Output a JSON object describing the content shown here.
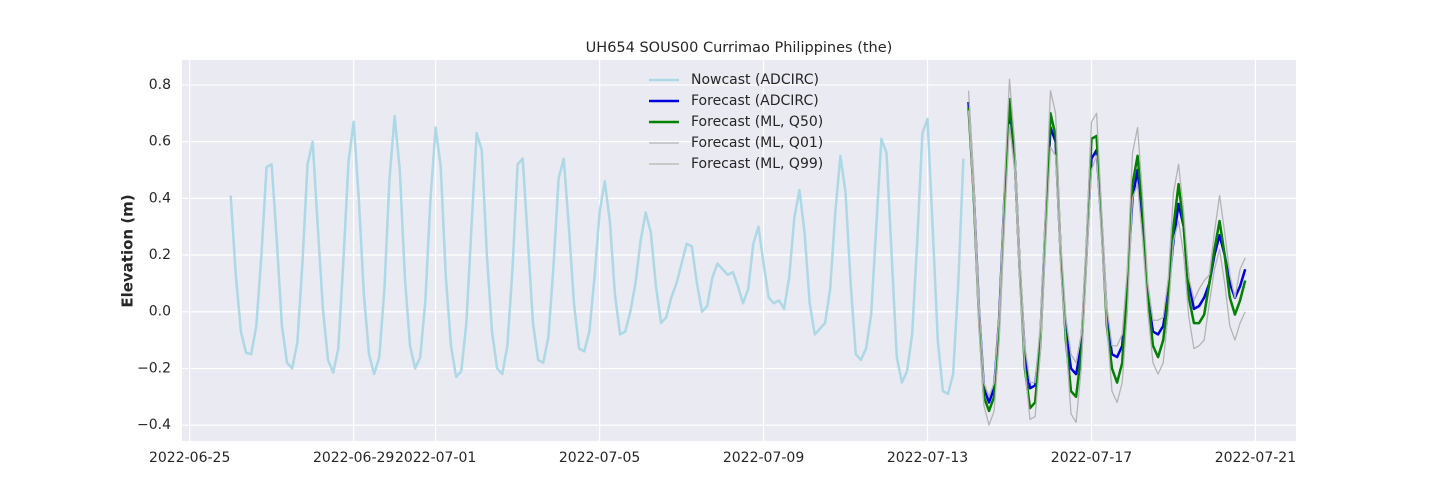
{
  "chart_data": {
    "type": "line",
    "title": "UH654 SOUS00 Currimao Philippines (the)",
    "y_label": "Elevation (m)",
    "xlim": [
      "2022-06-24T19:30",
      "2022-07-21T23:45"
    ],
    "xticks": [
      "2022-06-25",
      "2022-06-29",
      "2022-07-01",
      "2022-07-05",
      "2022-07-09",
      "2022-07-13",
      "2022-07-17",
      "2022-07-21"
    ],
    "ylim": [
      -0.456,
      0.888
    ],
    "yticks": [
      {
        "value": -0.4,
        "label": "−0.4"
      },
      {
        "value": -0.2,
        "label": "−0.2"
      },
      {
        "value": 0,
        "label": "0.0"
      },
      0.2,
      0.4,
      0.6,
      0.8
    ],
    "grid": true,
    "legend": "upper center",
    "series": [
      {
        "name": "Nowcast (ADCIRC)",
        "color": "#add8e6",
        "width": 2.5,
        "x": [
          "2022-06-26T00:00",
          "2022-06-26T03:00",
          "2022-06-26T06:00",
          "2022-06-26T09:00",
          "2022-06-26T12:00",
          "2022-06-26T15:00",
          "2022-06-26T18:00",
          "2022-06-26T21:00",
          "2022-06-27T00:00",
          "2022-06-27T03:00",
          "2022-06-27T06:00",
          "2022-06-27T09:00",
          "2022-06-27T12:00",
          "2022-06-27T15:00",
          "2022-06-27T18:00",
          "2022-06-27T21:00",
          "2022-06-28T00:00",
          "2022-06-28T03:00",
          "2022-06-28T06:00",
          "2022-06-28T09:00",
          "2022-06-28T12:00",
          "2022-06-28T15:00",
          "2022-06-28T18:00",
          "2022-06-28T21:00",
          "2022-06-29T00:00",
          "2022-06-29T03:00",
          "2022-06-29T06:00",
          "2022-06-29T09:00",
          "2022-06-29T12:00",
          "2022-06-29T15:00",
          "2022-06-29T18:00",
          "2022-06-29T21:00",
          "2022-06-30T00:00",
          "2022-06-30T03:00",
          "2022-06-30T06:00",
          "2022-06-30T09:00",
          "2022-06-30T12:00",
          "2022-06-30T15:00",
          "2022-06-30T18:00",
          "2022-06-30T21:00",
          "2022-07-01T00:00",
          "2022-07-01T03:00",
          "2022-07-01T06:00",
          "2022-07-01T09:00",
          "2022-07-01T12:00",
          "2022-07-01T15:00",
          "2022-07-01T18:00",
          "2022-07-01T21:00",
          "2022-07-02T00:00",
          "2022-07-02T03:00",
          "2022-07-02T06:00",
          "2022-07-02T09:00",
          "2022-07-02T12:00",
          "2022-07-02T15:00",
          "2022-07-02T18:00",
          "2022-07-02T21:00",
          "2022-07-03T00:00",
          "2022-07-03T03:00",
          "2022-07-03T06:00",
          "2022-07-03T09:00",
          "2022-07-03T12:00",
          "2022-07-03T15:00",
          "2022-07-03T18:00",
          "2022-07-03T21:00",
          "2022-07-04T00:00",
          "2022-07-04T03:00",
          "2022-07-04T06:00",
          "2022-07-04T09:00",
          "2022-07-04T12:00",
          "2022-07-04T15:00",
          "2022-07-04T18:00",
          "2022-07-04T21:00",
          "2022-07-05T00:00",
          "2022-07-05T03:00",
          "2022-07-05T06:00",
          "2022-07-05T09:00",
          "2022-07-05T12:00",
          "2022-07-05T15:00",
          "2022-07-05T18:00",
          "2022-07-05T21:00",
          "2022-07-06T00:00",
          "2022-07-06T03:00",
          "2022-07-06T06:00",
          "2022-07-06T09:00",
          "2022-07-06T12:00",
          "2022-07-06T15:00",
          "2022-07-06T18:00",
          "2022-07-06T21:00",
          "2022-07-07T00:00",
          "2022-07-07T03:00",
          "2022-07-07T06:00",
          "2022-07-07T09:00",
          "2022-07-07T12:00",
          "2022-07-07T15:00",
          "2022-07-07T18:00",
          "2022-07-07T21:00",
          "2022-07-08T00:00",
          "2022-07-08T03:00",
          "2022-07-08T06:00",
          "2022-07-08T09:00",
          "2022-07-08T12:00",
          "2022-07-08T15:00",
          "2022-07-08T18:00",
          "2022-07-08T21:00",
          "2022-07-09T00:00",
          "2022-07-09T03:00",
          "2022-07-09T06:00",
          "2022-07-09T09:00",
          "2022-07-09T12:00",
          "2022-07-09T15:00",
          "2022-07-09T18:00",
          "2022-07-09T21:00",
          "2022-07-10T00:00",
          "2022-07-10T03:00",
          "2022-07-10T06:00",
          "2022-07-10T09:00",
          "2022-07-10T12:00",
          "2022-07-10T15:00",
          "2022-07-10T18:00",
          "2022-07-10T21:00",
          "2022-07-11T00:00",
          "2022-07-11T03:00",
          "2022-07-11T06:00",
          "2022-07-11T09:00",
          "2022-07-11T12:00",
          "2022-07-11T15:00",
          "2022-07-11T18:00",
          "2022-07-11T21:00",
          "2022-07-12T00:00",
          "2022-07-12T03:00",
          "2022-07-12T06:00",
          "2022-07-12T09:00",
          "2022-07-12T12:00",
          "2022-07-12T15:00",
          "2022-07-12T18:00",
          "2022-07-12T21:00",
          "2022-07-13T00:00",
          "2022-07-13T03:00",
          "2022-07-13T06:00",
          "2022-07-13T09:00",
          "2022-07-13T12:00",
          "2022-07-13T15:00",
          "2022-07-13T18:00",
          "2022-07-13T21:00"
        ],
        "values": [
          0.41,
          0.13,
          -0.07,
          -0.145,
          -0.15,
          -0.05,
          0.2,
          0.51,
          0.52,
          0.25,
          -0.05,
          -0.18,
          -0.2,
          -0.11,
          0.17,
          0.52,
          0.6,
          0.3,
          0.01,
          -0.17,
          -0.215,
          -0.13,
          0.18,
          0.53,
          0.67,
          0.4,
          0.06,
          -0.15,
          -0.22,
          -0.16,
          0.08,
          0.47,
          0.69,
          0.5,
          0.12,
          -0.12,
          -0.2,
          -0.16,
          0.04,
          0.4,
          0.65,
          0.51,
          0.12,
          -0.12,
          -0.23,
          -0.21,
          -0.04,
          0.3,
          0.63,
          0.57,
          0.2,
          -0.07,
          -0.2,
          -0.22,
          -0.12,
          0.15,
          0.52,
          0.54,
          0.25,
          -0.04,
          -0.17,
          -0.18,
          -0.09,
          0.16,
          0.47,
          0.54,
          0.3,
          0.03,
          -0.13,
          -0.14,
          -0.07,
          0.12,
          0.35,
          0.46,
          0.32,
          0.06,
          -0.08,
          -0.07,
          0.0,
          0.1,
          0.25,
          0.35,
          0.28,
          0.09,
          -0.04,
          -0.02,
          0.05,
          0.1,
          0.17,
          0.24,
          0.23,
          0.1,
          0.0,
          0.02,
          0.12,
          0.17,
          0.15,
          0.13,
          0.14,
          0.09,
          0.03,
          0.08,
          0.24,
          0.3,
          0.17,
          0.05,
          0.03,
          0.04,
          0.01,
          0.12,
          0.33,
          0.43,
          0.28,
          0.03,
          -0.08,
          -0.06,
          -0.04,
          0.08,
          0.35,
          0.55,
          0.42,
          0.1,
          -0.15,
          -0.17,
          -0.13,
          -0.01,
          0.3,
          0.61,
          0.56,
          0.2,
          -0.16,
          -0.25,
          -0.21,
          -0.08,
          0.25,
          0.63,
          0.68,
          0.3,
          -0.1,
          -0.28,
          -0.29,
          -0.22,
          0.1,
          0.54
        ]
      },
      {
        "name": "Forecast (ADCIRC)",
        "color": "#0000dd",
        "width": 2.5,
        "x": [
          "2022-07-14T00:00",
          "2022-07-14T03:00",
          "2022-07-14T06:00",
          "2022-07-14T09:00",
          "2022-07-14T12:00",
          "2022-07-14T15:00",
          "2022-07-14T18:00",
          "2022-07-14T21:00",
          "2022-07-15T00:00",
          "2022-07-15T03:00",
          "2022-07-15T06:00",
          "2022-07-15T09:00",
          "2022-07-15T12:00",
          "2022-07-15T15:00",
          "2022-07-15T18:00",
          "2022-07-15T21:00",
          "2022-07-16T00:00",
          "2022-07-16T03:00",
          "2022-07-16T06:00",
          "2022-07-16T09:00",
          "2022-07-16T12:00",
          "2022-07-16T15:00",
          "2022-07-16T18:00",
          "2022-07-16T21:00",
          "2022-07-17T00:00",
          "2022-07-17T03:00",
          "2022-07-17T06:00",
          "2022-07-17T09:00",
          "2022-07-17T12:00",
          "2022-07-17T15:00",
          "2022-07-17T18:00",
          "2022-07-17T21:00",
          "2022-07-18T00:00",
          "2022-07-18T03:00",
          "2022-07-18T06:00",
          "2022-07-18T09:00",
          "2022-07-18T12:00",
          "2022-07-18T15:00",
          "2022-07-18T18:00",
          "2022-07-18T21:00",
          "2022-07-19T00:00",
          "2022-07-19T03:00",
          "2022-07-19T06:00",
          "2022-07-19T09:00",
          "2022-07-19T12:00",
          "2022-07-19T15:00",
          "2022-07-19T18:00",
          "2022-07-19T21:00",
          "2022-07-20T00:00",
          "2022-07-20T03:00",
          "2022-07-20T06:00",
          "2022-07-20T09:00",
          "2022-07-20T12:00",
          "2022-07-20T15:00",
          "2022-07-20T18:00"
        ],
        "values": [
          0.74,
          0.43,
          0.02,
          -0.27,
          -0.32,
          -0.27,
          -0.02,
          0.4,
          0.72,
          0.55,
          0.15,
          -0.15,
          -0.27,
          -0.26,
          -0.1,
          0.3,
          0.65,
          0.6,
          0.2,
          -0.07,
          -0.2,
          -0.22,
          -0.12,
          0.2,
          0.54,
          0.57,
          0.3,
          -0.02,
          -0.15,
          -0.16,
          -0.12,
          0.1,
          0.4,
          0.5,
          0.32,
          0.05,
          -0.07,
          -0.08,
          -0.05,
          0.07,
          0.25,
          0.38,
          0.3,
          0.1,
          0.01,
          0.02,
          0.05,
          0.1,
          0.2,
          0.27,
          0.2,
          0.1,
          0.05,
          0.09,
          0.15
        ]
      },
      {
        "name": "Forecast (ML, Q50)",
        "color": "#008000",
        "width": 2.5,
        "x": [
          "2022-07-14T00:00",
          "2022-07-14T03:00",
          "2022-07-14T06:00",
          "2022-07-14T09:00",
          "2022-07-14T12:00",
          "2022-07-14T15:00",
          "2022-07-14T18:00",
          "2022-07-14T21:00",
          "2022-07-15T00:00",
          "2022-07-15T03:00",
          "2022-07-15T06:00",
          "2022-07-15T09:00",
          "2022-07-15T12:00",
          "2022-07-15T15:00",
          "2022-07-15T18:00",
          "2022-07-15T21:00",
          "2022-07-16T00:00",
          "2022-07-16T03:00",
          "2022-07-16T06:00",
          "2022-07-16T09:00",
          "2022-07-16T12:00",
          "2022-07-16T15:00",
          "2022-07-16T18:00",
          "2022-07-16T21:00",
          "2022-07-17T00:00",
          "2022-07-17T03:00",
          "2022-07-17T06:00",
          "2022-07-17T09:00",
          "2022-07-17T12:00",
          "2022-07-17T15:00",
          "2022-07-17T18:00",
          "2022-07-17T21:00",
          "2022-07-18T00:00",
          "2022-07-18T03:00",
          "2022-07-18T06:00",
          "2022-07-18T09:00",
          "2022-07-18T12:00",
          "2022-07-18T15:00",
          "2022-07-18T18:00",
          "2022-07-18T21:00",
          "2022-07-19T00:00",
          "2022-07-19T03:00",
          "2022-07-19T06:00",
          "2022-07-19T09:00",
          "2022-07-19T12:00",
          "2022-07-19T15:00",
          "2022-07-19T18:00",
          "2022-07-19T21:00",
          "2022-07-20T00:00",
          "2022-07-20T03:00",
          "2022-07-20T06:00",
          "2022-07-20T09:00",
          "2022-07-20T12:00",
          "2022-07-20T15:00",
          "2022-07-20T18:00"
        ],
        "values": [
          0.72,
          0.42,
          0.0,
          -0.3,
          -0.35,
          -0.3,
          -0.04,
          0.38,
          0.75,
          0.55,
          0.15,
          -0.2,
          -0.34,
          -0.32,
          -0.12,
          0.28,
          0.7,
          0.62,
          0.2,
          -0.1,
          -0.28,
          -0.3,
          -0.15,
          0.2,
          0.61,
          0.62,
          0.3,
          -0.05,
          -0.2,
          -0.25,
          -0.18,
          0.1,
          0.45,
          0.55,
          0.35,
          0.05,
          -0.12,
          -0.16,
          -0.1,
          0.05,
          0.3,
          0.45,
          0.3,
          0.05,
          -0.04,
          -0.04,
          -0.01,
          0.1,
          0.22,
          0.32,
          0.2,
          0.05,
          -0.01,
          0.04,
          0.11
        ]
      },
      {
        "name": "Forecast (ML, Q01)",
        "color": "#b4b4b4",
        "width": 1.3,
        "x": [
          "2022-07-14T00:00",
          "2022-07-14T03:00",
          "2022-07-14T06:00",
          "2022-07-14T09:00",
          "2022-07-14T12:00",
          "2022-07-14T15:00",
          "2022-07-14T18:00",
          "2022-07-14T21:00",
          "2022-07-15T00:00",
          "2022-07-15T03:00",
          "2022-07-15T06:00",
          "2022-07-15T09:00",
          "2022-07-15T12:00",
          "2022-07-15T15:00",
          "2022-07-15T18:00",
          "2022-07-15T21:00",
          "2022-07-16T00:00",
          "2022-07-16T03:00",
          "2022-07-16T06:00",
          "2022-07-16T09:00",
          "2022-07-16T12:00",
          "2022-07-16T15:00",
          "2022-07-16T18:00",
          "2022-07-16T21:00",
          "2022-07-17T00:00",
          "2022-07-17T03:00",
          "2022-07-17T06:00",
          "2022-07-17T09:00",
          "2022-07-17T12:00",
          "2022-07-17T15:00",
          "2022-07-17T18:00",
          "2022-07-17T21:00",
          "2022-07-18T00:00",
          "2022-07-18T03:00",
          "2022-07-18T06:00",
          "2022-07-18T09:00",
          "2022-07-18T12:00",
          "2022-07-18T15:00",
          "2022-07-18T18:00",
          "2022-07-18T21:00",
          "2022-07-19T00:00",
          "2022-07-19T03:00",
          "2022-07-19T06:00",
          "2022-07-19T09:00",
          "2022-07-19T12:00",
          "2022-07-19T15:00",
          "2022-07-19T18:00",
          "2022-07-19T21:00",
          "2022-07-20T00:00",
          "2022-07-20T03:00",
          "2022-07-20T06:00",
          "2022-07-20T09:00",
          "2022-07-20T12:00",
          "2022-07-20T15:00",
          "2022-07-20T18:00"
        ],
        "values": [
          0.71,
          0.4,
          -0.05,
          -0.33,
          -0.4,
          -0.35,
          -0.1,
          0.3,
          0.66,
          0.5,
          0.1,
          -0.2,
          -0.38,
          -0.37,
          -0.15,
          0.22,
          0.58,
          0.55,
          0.15,
          -0.1,
          -0.36,
          -0.39,
          -0.2,
          0.15,
          0.5,
          0.55,
          0.25,
          -0.05,
          -0.28,
          -0.32,
          -0.25,
          0.0,
          0.4,
          0.45,
          0.25,
          0.0,
          -0.18,
          -0.22,
          -0.18,
          0.0,
          0.25,
          0.32,
          0.2,
          -0.02,
          -0.13,
          -0.12,
          -0.1,
          0.03,
          0.15,
          0.22,
          0.1,
          -0.05,
          -0.1,
          -0.04,
          0.0
        ]
      },
      {
        "name": "Forecast (ML, Q99)",
        "color": "#b4b4b4",
        "width": 1.3,
        "x": [
          "2022-07-14T00:00",
          "2022-07-14T03:00",
          "2022-07-14T06:00",
          "2022-07-14T09:00",
          "2022-07-14T12:00",
          "2022-07-14T15:00",
          "2022-07-14T18:00",
          "2022-07-14T21:00",
          "2022-07-15T00:00",
          "2022-07-15T03:00",
          "2022-07-15T06:00",
          "2022-07-15T09:00",
          "2022-07-15T12:00",
          "2022-07-15T15:00",
          "2022-07-15T18:00",
          "2022-07-15T21:00",
          "2022-07-16T00:00",
          "2022-07-16T03:00",
          "2022-07-16T06:00",
          "2022-07-16T09:00",
          "2022-07-16T12:00",
          "2022-07-16T15:00",
          "2022-07-16T18:00",
          "2022-07-16T21:00",
          "2022-07-17T00:00",
          "2022-07-17T03:00",
          "2022-07-17T06:00",
          "2022-07-17T09:00",
          "2022-07-17T12:00",
          "2022-07-17T15:00",
          "2022-07-17T18:00",
          "2022-07-17T21:00",
          "2022-07-18T00:00",
          "2022-07-18T03:00",
          "2022-07-18T06:00",
          "2022-07-18T09:00",
          "2022-07-18T12:00",
          "2022-07-18T15:00",
          "2022-07-18T18:00",
          "2022-07-18T21:00",
          "2022-07-19T00:00",
          "2022-07-19T03:00",
          "2022-07-19T06:00",
          "2022-07-19T09:00",
          "2022-07-19T12:00",
          "2022-07-19T15:00",
          "2022-07-19T18:00",
          "2022-07-19T21:00",
          "2022-07-20T00:00",
          "2022-07-20T03:00",
          "2022-07-20T06:00",
          "2022-07-20T09:00",
          "2022-07-20T12:00",
          "2022-07-20T15:00",
          "2022-07-20T18:00"
        ],
        "values": [
          0.78,
          0.48,
          0.05,
          -0.25,
          -0.3,
          -0.25,
          0.0,
          0.45,
          0.82,
          0.6,
          0.2,
          -0.12,
          -0.25,
          -0.25,
          -0.05,
          0.35,
          0.78,
          0.7,
          0.25,
          -0.02,
          -0.15,
          -0.18,
          -0.08,
          0.25,
          0.67,
          0.7,
          0.35,
          0.02,
          -0.12,
          -0.12,
          -0.08,
          0.15,
          0.56,
          0.65,
          0.4,
          0.1,
          -0.03,
          -0.03,
          -0.02,
          0.12,
          0.42,
          0.52,
          0.35,
          0.12,
          0.04,
          0.08,
          0.11,
          0.13,
          0.28,
          0.41,
          0.28,
          0.13,
          0.05,
          0.15,
          0.19
        ]
      }
    ]
  }
}
